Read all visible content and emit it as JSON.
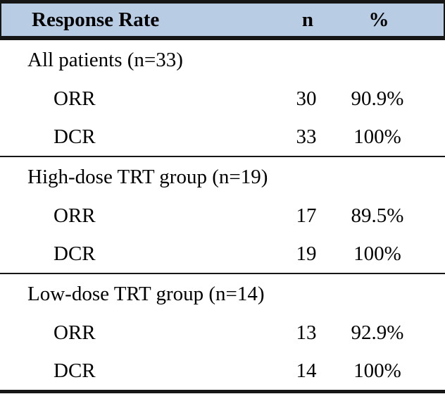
{
  "table": {
    "header": {
      "response_rate_label": "Response Rate",
      "n_label": "n",
      "percent_label": "%"
    },
    "sections": [
      {
        "group_label": "All patients (n=33)",
        "rows": [
          {
            "label": "ORR",
            "n": "30",
            "pct": "90.9%"
          },
          {
            "label": "DCR",
            "n": "33",
            "pct": "100%"
          }
        ]
      },
      {
        "group_label": "High-dose TRT group (n=19)",
        "rows": [
          {
            "label": "ORR",
            "n": "17",
            "pct": "89.5%"
          },
          {
            "label": "DCR",
            "n": "19",
            "pct": "100%"
          }
        ]
      },
      {
        "group_label": "Low-dose TRT group (n=14)",
        "rows": [
          {
            "label": "ORR",
            "n": "13",
            "pct": "92.9%"
          },
          {
            "label": "DCR",
            "n": "14",
            "pct": "100%"
          }
        ]
      }
    ],
    "colors": {
      "header_bg": "#b8cce4",
      "rule": "#161616",
      "text": "#000000"
    }
  }
}
